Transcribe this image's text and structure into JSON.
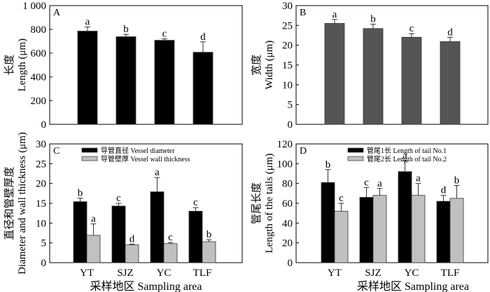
{
  "chart_data": [
    {
      "type": "bar",
      "panel": "A",
      "title": "",
      "xlabel": "",
      "ylabel_cn": "长度",
      "ylabel": "Length (μm)",
      "ylim": [
        0,
        1000
      ],
      "yticks": [
        0,
        200,
        400,
        600,
        800,
        1000
      ],
      "ytick_labels": [
        "0",
        "200",
        "400",
        "600",
        "800",
        "1 000"
      ],
      "categories": [
        "YT",
        "SJZ",
        "YC",
        "TLF"
      ],
      "show_categories": false,
      "series": [
        {
          "name": "Length",
          "color": "#000000",
          "values": [
            785,
            738,
            708,
            607
          ],
          "errors": [
            35,
            20,
            12,
            88
          ],
          "letters": [
            "a",
            "b",
            "c",
            "d"
          ]
        }
      ]
    },
    {
      "type": "bar",
      "panel": "B",
      "title": "",
      "xlabel": "",
      "ylabel_cn": "宽度",
      "ylabel": "Width (μm)",
      "ylim": [
        0,
        30
      ],
      "yticks": [
        0,
        5,
        10,
        15,
        20,
        25,
        30
      ],
      "ytick_labels": [
        "0",
        "5",
        "10",
        "15",
        "20",
        "25",
        "30"
      ],
      "categories": [
        "YT",
        "SJZ",
        "YC",
        "TLF"
      ],
      "show_categories": false,
      "series": [
        {
          "name": "Width",
          "color": "#555555",
          "values": [
            25.5,
            24.2,
            22.0,
            20.9
          ],
          "errors": [
            1.0,
            1.1,
            0.9,
            1.1
          ],
          "letters": [
            "a",
            "b",
            "c",
            "d"
          ]
        }
      ]
    },
    {
      "type": "bar",
      "panel": "C",
      "title": "",
      "xlabel": "采样地区 Sampling area",
      "ylabel_cn": "直径和管壁厚度",
      "ylabel": "Diameter and wall thickness (μm)",
      "ylim": [
        0,
        30
      ],
      "yticks": [
        0,
        5,
        10,
        15,
        20,
        25,
        30
      ],
      "ytick_labels": [
        "0",
        "5",
        "10",
        "15",
        "20",
        "25",
        "30"
      ],
      "categories": [
        "YT",
        "SJZ",
        "YC",
        "TLF"
      ],
      "show_categories": true,
      "legend_position": "top-center",
      "series": [
        {
          "name": "导管直径 Vessel diameter",
          "color": "#000000",
          "values": [
            15.4,
            14.3,
            17.9,
            13.0
          ],
          "errors": [
            0.9,
            0.7,
            3.6,
            0.9
          ],
          "letters": [
            "b",
            "c",
            "a",
            "c"
          ]
        },
        {
          "name": "导管壁厚 Vessel wall thickness",
          "color": "#c0c0c0",
          "values": [
            6.9,
            4.5,
            4.8,
            5.3
          ],
          "errors": [
            2.9,
            0.2,
            0.3,
            0.5
          ],
          "letters": [
            "a",
            "d",
            "c",
            "b"
          ]
        }
      ]
    },
    {
      "type": "bar",
      "panel": "D",
      "title": "",
      "xlabel": "采样地区 Sampling area",
      "ylabel_cn": "管尾长度",
      "ylabel": "Length of the tails (μm)",
      "ylim": [
        0,
        120
      ],
      "yticks": [
        0,
        20,
        40,
        60,
        80,
        100,
        120
      ],
      "ytick_labels": [
        "0",
        "20",
        "40",
        "60",
        "80",
        "100",
        "120"
      ],
      "categories": [
        "YT",
        "SJZ",
        "YC",
        "TLF"
      ],
      "show_categories": true,
      "legend_position": "top-center",
      "series": [
        {
          "name": "管尾1长 Length of tail No.1",
          "color": "#000000",
          "values": [
            81,
            66,
            92,
            62
          ],
          "errors": [
            13,
            10,
            11,
            6
          ],
          "letters": [
            "b",
            "c",
            "a",
            "d"
          ]
        },
        {
          "name": "管尾2长 Length of tail No.2",
          "color": "#c0c0c0",
          "values": [
            52,
            68,
            68,
            65
          ],
          "errors": [
            8,
            7,
            12,
            13
          ],
          "letters": [
            "c",
            "a",
            "a",
            "b"
          ]
        }
      ]
    }
  ]
}
